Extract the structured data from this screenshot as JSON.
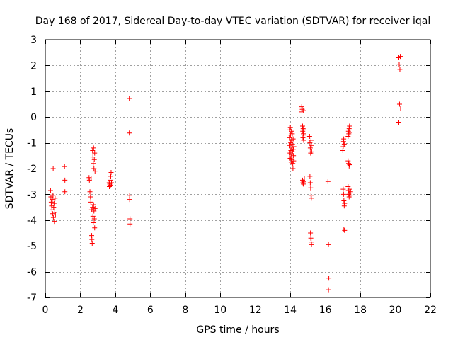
{
  "chart_data": {
    "type": "scatter",
    "title": "Day 168 of 2017, Sidereal Day-to-day VTEC variation (SDTVAR) for receiver iqal",
    "xlabel": "GPS time / hours",
    "ylabel": "SDTVAR / TECUs",
    "xlim": [
      0,
      22
    ],
    "ylim": [
      -7,
      3
    ],
    "xticks": [
      0,
      2,
      4,
      6,
      8,
      10,
      12,
      14,
      16,
      18,
      20,
      22
    ],
    "yticks": [
      -7,
      -6,
      -5,
      -4,
      -3,
      -2,
      -1,
      0,
      1,
      2,
      3
    ],
    "grid": true,
    "marker": "+",
    "color": "#ff0000",
    "series": [
      {
        "name": "SDTVAR",
        "points": [
          [
            0.3,
            -2.85
          ],
          [
            0.32,
            -3.1
          ],
          [
            0.34,
            -3.3
          ],
          [
            0.36,
            -3.45
          ],
          [
            0.38,
            -3.6
          ],
          [
            0.4,
            -3.2
          ],
          [
            0.42,
            -3.75
          ],
          [
            0.44,
            -3.05
          ],
          [
            0.46,
            -3.9
          ],
          [
            0.48,
            -3.5
          ],
          [
            0.5,
            -3.35
          ],
          [
            0.52,
            -4.05
          ],
          [
            0.54,
            -3.7
          ],
          [
            0.56,
            -3.15
          ],
          [
            0.45,
            -2.0
          ],
          [
            0.58,
            -3.8
          ],
          [
            1.1,
            -1.92
          ],
          [
            1.12,
            -2.45
          ],
          [
            1.12,
            -2.9
          ],
          [
            2.5,
            -2.35
          ],
          [
            2.52,
            -2.45
          ],
          [
            2.55,
            -2.9
          ],
          [
            2.58,
            -3.1
          ],
          [
            2.6,
            -3.3
          ],
          [
            2.62,
            -2.4
          ],
          [
            2.64,
            -3.6
          ],
          [
            2.65,
            -4.6
          ],
          [
            2.66,
            -4.75
          ],
          [
            2.68,
            -4.9
          ],
          [
            2.7,
            -1.3
          ],
          [
            2.7,
            -3.5
          ],
          [
            2.72,
            -1.55
          ],
          [
            2.72,
            -3.85
          ],
          [
            2.74,
            -1.8
          ],
          [
            2.74,
            -4.1
          ],
          [
            2.76,
            -1.2
          ],
          [
            2.76,
            -3.4
          ],
          [
            2.78,
            -2.0
          ],
          [
            2.78,
            -3.65
          ],
          [
            2.8,
            -1.65
          ],
          [
            2.8,
            -3.95
          ],
          [
            2.82,
            -1.4
          ],
          [
            2.82,
            -4.3
          ],
          [
            2.84,
            -3.55
          ],
          [
            2.84,
            -2.1
          ],
          [
            3.65,
            -2.55
          ],
          [
            3.66,
            -2.7
          ],
          [
            3.68,
            -2.6
          ],
          [
            3.7,
            -2.45
          ],
          [
            3.72,
            -2.65
          ],
          [
            3.74,
            -2.3
          ],
          [
            3.76,
            -2.15
          ],
          [
            3.78,
            -2.55
          ],
          [
            4.8,
            0.72
          ],
          [
            4.8,
            -0.62
          ],
          [
            4.82,
            -3.05
          ],
          [
            4.82,
            -3.2
          ],
          [
            4.84,
            -3.95
          ],
          [
            4.84,
            -4.15
          ],
          [
            13.95,
            -0.5
          ],
          [
            13.96,
            -0.8
          ],
          [
            13.97,
            -1.1
          ],
          [
            13.98,
            -1.4
          ],
          [
            13.99,
            -1.6
          ],
          [
            14.0,
            -0.4
          ],
          [
            14.01,
            -0.7
          ],
          [
            14.02,
            -1.0
          ],
          [
            14.03,
            -1.3
          ],
          [
            14.04,
            -1.55
          ],
          [
            14.05,
            -1.75
          ],
          [
            14.06,
            -0.55
          ],
          [
            14.07,
            -0.9
          ],
          [
            14.08,
            -1.2
          ],
          [
            14.09,
            -1.45
          ],
          [
            14.1,
            -1.65
          ],
          [
            14.11,
            -0.65
          ],
          [
            14.12,
            -1.05
          ],
          [
            14.13,
            -1.35
          ],
          [
            14.14,
            -1.8
          ],
          [
            14.15,
            -2.0
          ],
          [
            14.16,
            -0.85
          ],
          [
            14.17,
            -1.25
          ],
          [
            14.18,
            -1.5
          ],
          [
            14.19,
            -1.7
          ],
          [
            14.2,
            -1.15
          ],
          [
            14.65,
            0.4
          ],
          [
            14.66,
            0.2
          ],
          [
            14.68,
            0.3
          ],
          [
            14.7,
            -0.35
          ],
          [
            14.71,
            -0.55
          ],
          [
            14.72,
            -0.8
          ],
          [
            14.73,
            -0.45
          ],
          [
            14.74,
            -0.65
          ],
          [
            14.75,
            0.25
          ],
          [
            14.76,
            -0.9
          ],
          [
            14.77,
            -0.5
          ],
          [
            14.78,
            -0.7
          ],
          [
            14.7,
            -2.45
          ],
          [
            14.72,
            -2.55
          ],
          [
            14.74,
            -2.6
          ],
          [
            14.76,
            -2.5
          ],
          [
            14.8,
            -2.4
          ],
          [
            15.1,
            -0.75
          ],
          [
            15.12,
            -1.0
          ],
          [
            15.14,
            -1.2
          ],
          [
            15.16,
            -1.4
          ],
          [
            15.18,
            -0.9
          ],
          [
            15.2,
            -1.1
          ],
          [
            15.22,
            -1.35
          ],
          [
            15.12,
            -2.3
          ],
          [
            15.14,
            -2.55
          ],
          [
            15.16,
            -2.75
          ],
          [
            15.18,
            -3.05
          ],
          [
            15.2,
            -3.15
          ],
          [
            15.15,
            -4.5
          ],
          [
            15.17,
            -4.7
          ],
          [
            15.19,
            -4.85
          ],
          [
            15.21,
            -4.95
          ],
          [
            16.15,
            -2.5
          ],
          [
            16.18,
            -4.95
          ],
          [
            16.2,
            -6.25
          ],
          [
            16.18,
            -6.7
          ],
          [
            17.0,
            -1.3
          ],
          [
            17.02,
            -1.15
          ],
          [
            17.04,
            -0.95
          ],
          [
            17.05,
            -0.85
          ],
          [
            17.08,
            -1.05
          ],
          [
            17.06,
            -4.35
          ],
          [
            17.1,
            -4.4
          ],
          [
            17.02,
            -2.8
          ],
          [
            17.04,
            -3.0
          ],
          [
            17.06,
            -3.25
          ],
          [
            17.08,
            -3.45
          ],
          [
            17.1,
            -3.35
          ],
          [
            17.3,
            -0.75
          ],
          [
            17.32,
            -0.55
          ],
          [
            17.34,
            -0.65
          ],
          [
            17.36,
            -0.45
          ],
          [
            17.38,
            -0.35
          ],
          [
            17.4,
            -0.6
          ],
          [
            17.3,
            -1.7
          ],
          [
            17.33,
            -1.8
          ],
          [
            17.36,
            -1.9
          ],
          [
            17.39,
            -1.85
          ],
          [
            17.3,
            -2.7
          ],
          [
            17.32,
            -2.85
          ],
          [
            17.34,
            -3.0
          ],
          [
            17.36,
            -3.1
          ],
          [
            17.38,
            -2.95
          ],
          [
            17.4,
            -2.8
          ],
          [
            17.42,
            -3.05
          ],
          [
            17.44,
            -2.9
          ],
          [
            20.2,
            2.3
          ],
          [
            20.22,
            2.05
          ],
          [
            20.26,
            1.85
          ],
          [
            20.28,
            2.35
          ],
          [
            20.24,
            0.5
          ],
          [
            20.3,
            0.35
          ],
          [
            20.2,
            -0.2
          ]
        ]
      }
    ]
  }
}
